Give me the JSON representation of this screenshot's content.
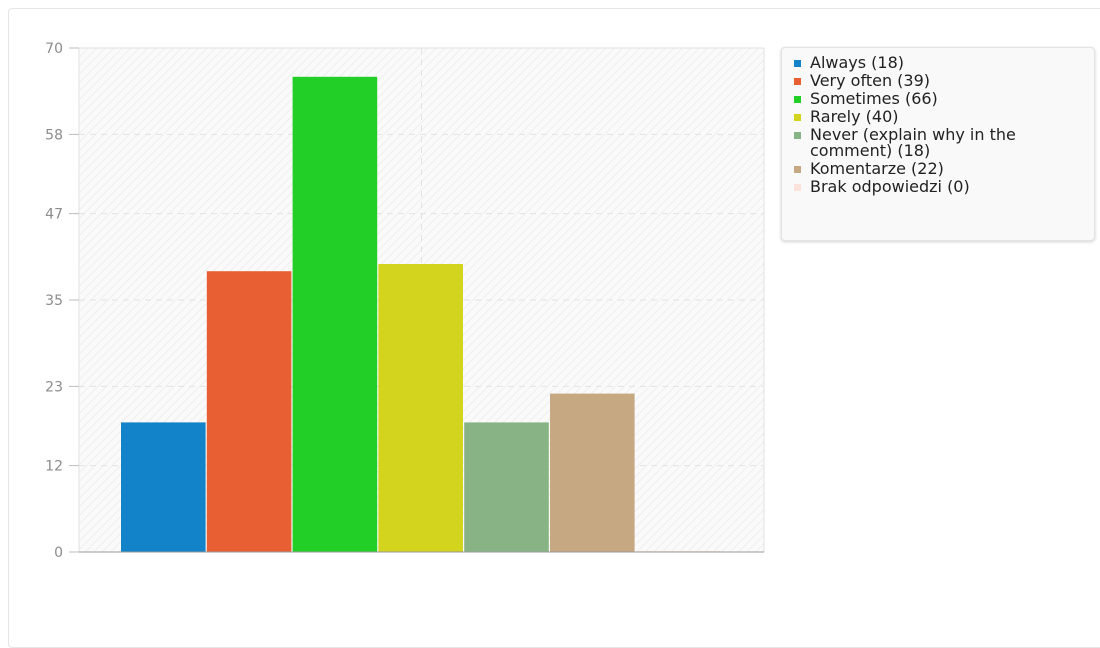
{
  "chart_data": {
    "type": "bar",
    "categories": [
      "Always (18)",
      "Very often (39)",
      "Sometimes (66)",
      "Rarely (40)",
      "Never (explain why in the comment) (18)",
      "Komentarze (22)",
      "Brak odpowiedzi (0)"
    ],
    "values": [
      18,
      39,
      66,
      40,
      18,
      22,
      0
    ],
    "colors": [
      "#1383c9",
      "#e85f33",
      "#21cf27",
      "#d3d41d",
      "#88b485",
      "#c6a883",
      "#fbe3dc"
    ],
    "yticks": [
      "0",
      "12",
      "23",
      "35",
      "47",
      "58",
      "70"
    ],
    "ylim": [
      0,
      70
    ],
    "grid": true,
    "legend_position": "right"
  }
}
